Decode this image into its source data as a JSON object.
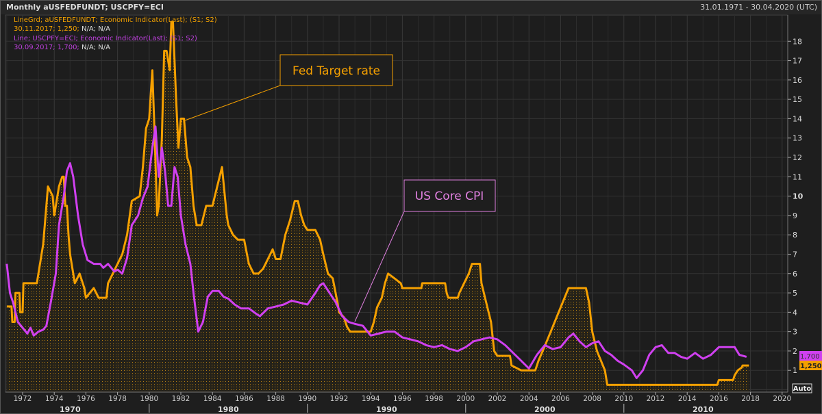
{
  "header": {
    "title": "Monthly aUSFEDFUNDT; USCPFY=ECI",
    "date_range": "31.01.1971 - 30.04.2020 (UTC)"
  },
  "legend": [
    {
      "line1": "LineGrd; aUSFEDFUNDT; Economic Indicator(Last); (S1; S2)",
      "date": "30.11.2017; 1,250;",
      "rest": " N/A; N/A"
    },
    {
      "line1": "Line; USCPFY=ECI; Economic Indicator(Last); (S1; S2)",
      "date": "30.09.2017; 1,700;",
      "rest": " N/A; N/A"
    }
  ],
  "annotations": {
    "fed": "Fed Target rate",
    "cpi": "US Core CPI"
  },
  "value_tags": {
    "cpi": "1,700",
    "fed": "1,250"
  },
  "auto_label": "Auto",
  "colors": {
    "fed": "#f5a000",
    "cpi": "#d040f0",
    "cpi_label": "#e080e0"
  },
  "chart_data": {
    "type": "line",
    "title": "Monthly aUSFEDFUNDT; USCPFY=ECI",
    "xlim": [
      1971,
      2020.3
    ],
    "ylim": [
      0,
      18.5
    ],
    "x_ticks": [
      1972,
      1974,
      1976,
      1978,
      1980,
      1982,
      1984,
      1986,
      1988,
      1990,
      1992,
      1994,
      1996,
      1998,
      2000,
      2002,
      2004,
      2006,
      2008,
      2010,
      2012,
      2014,
      2016,
      2018,
      2020
    ],
    "decades": [
      1970,
      1980,
      1990,
      2000,
      2010
    ],
    "y_ticks": [
      1,
      2,
      3,
      4,
      5,
      6,
      7,
      8,
      9,
      10,
      11,
      12,
      13,
      14,
      15,
      16,
      17,
      18
    ],
    "grid": true,
    "series": [
      {
        "name": "aUSFEDFUNDT",
        "style": "line-fill",
        "points": [
          [
            1971.0,
            4.3
          ],
          [
            1971.3,
            4.3
          ],
          [
            1971.35,
            3.5
          ],
          [
            1971.5,
            3.5
          ],
          [
            1971.55,
            5.0
          ],
          [
            1971.8,
            5.0
          ],
          [
            1971.85,
            4.0
          ],
          [
            1972.0,
            4.0
          ],
          [
            1972.05,
            5.5
          ],
          [
            1972.9,
            5.5
          ],
          [
            1973.0,
            6.0
          ],
          [
            1973.3,
            7.5
          ],
          [
            1973.5,
            9.5
          ],
          [
            1973.6,
            10.5
          ],
          [
            1973.9,
            10.0
          ],
          [
            1974.0,
            9.0
          ],
          [
            1974.3,
            10.5
          ],
          [
            1974.5,
            11.0
          ],
          [
            1974.6,
            11.0
          ],
          [
            1974.7,
            9.5
          ],
          [
            1974.8,
            9.5
          ],
          [
            1974.9,
            8.0
          ],
          [
            1975.0,
            7.0
          ],
          [
            1975.3,
            5.5
          ],
          [
            1975.6,
            6.0
          ],
          [
            1975.9,
            5.25
          ],
          [
            1976.0,
            4.75
          ],
          [
            1976.5,
            5.25
          ],
          [
            1976.8,
            4.75
          ],
          [
            1977.3,
            4.75
          ],
          [
            1977.4,
            5.5
          ],
          [
            1977.7,
            6.0
          ],
          [
            1978.0,
            6.5
          ],
          [
            1978.3,
            7.0
          ],
          [
            1978.6,
            8.0
          ],
          [
            1978.9,
            9.75
          ],
          [
            1979.4,
            10.0
          ],
          [
            1979.6,
            11.5
          ],
          [
            1979.8,
            13.5
          ],
          [
            1980.0,
            14.0
          ],
          [
            1980.2,
            16.5
          ],
          [
            1980.35,
            13.0
          ],
          [
            1980.5,
            9.0
          ],
          [
            1980.6,
            9.5
          ],
          [
            1980.8,
            13.0
          ],
          [
            1980.95,
            17.5
          ],
          [
            1981.1,
            17.5
          ],
          [
            1981.3,
            16.5
          ],
          [
            1981.4,
            19.0
          ],
          [
            1981.5,
            19.0
          ],
          [
            1981.7,
            15.0
          ],
          [
            1981.85,
            12.5
          ],
          [
            1981.9,
            13.0
          ],
          [
            1982.0,
            14.0
          ],
          [
            1982.2,
            14.0
          ],
          [
            1982.4,
            12.0
          ],
          [
            1982.6,
            11.5
          ],
          [
            1982.8,
            9.5
          ],
          [
            1983.0,
            8.5
          ],
          [
            1983.3,
            8.5
          ],
          [
            1983.6,
            9.5
          ],
          [
            1984.0,
            9.5
          ],
          [
            1984.3,
            10.5
          ],
          [
            1984.6,
            11.5
          ],
          [
            1984.9,
            9.0
          ],
          [
            1985.0,
            8.5
          ],
          [
            1985.3,
            8.0
          ],
          [
            1985.6,
            7.75
          ],
          [
            1986.0,
            7.75
          ],
          [
            1986.3,
            6.5
          ],
          [
            1986.6,
            6.0
          ],
          [
            1986.9,
            6.0
          ],
          [
            1987.2,
            6.25
          ],
          [
            1987.5,
            6.75
          ],
          [
            1987.8,
            7.25
          ],
          [
            1988.0,
            6.75
          ],
          [
            1988.3,
            6.75
          ],
          [
            1988.6,
            8.0
          ],
          [
            1988.9,
            8.75
          ],
          [
            1989.2,
            9.75
          ],
          [
            1989.4,
            9.75
          ],
          [
            1989.6,
            9.0
          ],
          [
            1989.8,
            8.5
          ],
          [
            1990.0,
            8.25
          ],
          [
            1990.5,
            8.25
          ],
          [
            1990.8,
            7.75
          ],
          [
            1991.0,
            7.0
          ],
          [
            1991.3,
            6.0
          ],
          [
            1991.6,
            5.75
          ],
          [
            1991.9,
            4.5
          ],
          [
            1992.0,
            4.0
          ],
          [
            1992.3,
            3.75
          ],
          [
            1992.5,
            3.25
          ],
          [
            1992.7,
            3.0
          ],
          [
            1994.0,
            3.0
          ],
          [
            1994.2,
            3.5
          ],
          [
            1994.4,
            4.25
          ],
          [
            1994.7,
            4.75
          ],
          [
            1994.9,
            5.5
          ],
          [
            1995.1,
            6.0
          ],
          [
            1995.5,
            5.75
          ],
          [
            1995.9,
            5.5
          ],
          [
            1996.0,
            5.25
          ],
          [
            1997.2,
            5.25
          ],
          [
            1997.25,
            5.5
          ],
          [
            1998.7,
            5.5
          ],
          [
            1998.8,
            5.0
          ],
          [
            1998.9,
            4.75
          ],
          [
            1999.5,
            4.75
          ],
          [
            1999.6,
            5.0
          ],
          [
            1999.9,
            5.5
          ],
          [
            2000.2,
            6.0
          ],
          [
            2000.4,
            6.5
          ],
          [
            2000.9,
            6.5
          ],
          [
            2001.0,
            5.5
          ],
          [
            2001.3,
            4.5
          ],
          [
            2001.6,
            3.5
          ],
          [
            2001.8,
            2.0
          ],
          [
            2002.0,
            1.75
          ],
          [
            2002.8,
            1.75
          ],
          [
            2002.9,
            1.25
          ],
          [
            2003.5,
            1.0
          ],
          [
            2004.4,
            1.0
          ],
          [
            2004.6,
            1.5
          ],
          [
            2005.0,
            2.25
          ],
          [
            2005.5,
            3.25
          ],
          [
            2006.0,
            4.25
          ],
          [
            2006.5,
            5.25
          ],
          [
            2007.6,
            5.25
          ],
          [
            2007.8,
            4.5
          ],
          [
            2008.0,
            3.0
          ],
          [
            2008.3,
            2.0
          ],
          [
            2008.8,
            1.0
          ],
          [
            2008.95,
            0.25
          ],
          [
            2015.9,
            0.25
          ],
          [
            2016.0,
            0.5
          ],
          [
            2016.9,
            0.5
          ],
          [
            2017.0,
            0.75
          ],
          [
            2017.2,
            1.0
          ],
          [
            2017.45,
            1.15
          ],
          [
            2017.5,
            1.25
          ],
          [
            2017.9,
            1.25
          ]
        ]
      },
      {
        "name": "USCPFY=ECI",
        "style": "line",
        "points": [
          [
            1971.0,
            6.5
          ],
          [
            1971.2,
            5.0
          ],
          [
            1971.4,
            4.5
          ],
          [
            1971.7,
            3.5
          ],
          [
            1972.0,
            3.2
          ],
          [
            1972.3,
            2.9
          ],
          [
            1972.5,
            3.2
          ],
          [
            1972.7,
            2.8
          ],
          [
            1973.0,
            3.0
          ],
          [
            1973.3,
            3.1
          ],
          [
            1973.5,
            3.3
          ],
          [
            1973.8,
            4.6
          ],
          [
            1974.1,
            6.0
          ],
          [
            1974.3,
            8.5
          ],
          [
            1974.6,
            10.0
          ],
          [
            1974.8,
            11.3
          ],
          [
            1975.0,
            11.7
          ],
          [
            1975.2,
            11.0
          ],
          [
            1975.5,
            9.0
          ],
          [
            1975.8,
            7.5
          ],
          [
            1976.1,
            6.7
          ],
          [
            1976.5,
            6.5
          ],
          [
            1976.9,
            6.5
          ],
          [
            1977.1,
            6.3
          ],
          [
            1977.4,
            6.5
          ],
          [
            1977.8,
            6.1
          ],
          [
            1978.0,
            6.2
          ],
          [
            1978.3,
            6.0
          ],
          [
            1978.6,
            6.8
          ],
          [
            1978.9,
            8.5
          ],
          [
            1979.3,
            9.0
          ],
          [
            1979.6,
            9.9
          ],
          [
            1979.9,
            10.5
          ],
          [
            1980.2,
            12.5
          ],
          [
            1980.4,
            13.6
          ],
          [
            1980.6,
            11.0
          ],
          [
            1980.8,
            12.5
          ],
          [
            1981.0,
            11.3
          ],
          [
            1981.2,
            9.5
          ],
          [
            1981.4,
            9.5
          ],
          [
            1981.6,
            11.5
          ],
          [
            1981.8,
            11.0
          ],
          [
            1982.0,
            9.0
          ],
          [
            1982.3,
            7.5
          ],
          [
            1982.6,
            6.5
          ],
          [
            1982.8,
            5.0
          ],
          [
            1983.1,
            3.0
          ],
          [
            1983.4,
            3.5
          ],
          [
            1983.7,
            4.8
          ],
          [
            1984.0,
            5.1
          ],
          [
            1984.4,
            5.1
          ],
          [
            1984.7,
            4.8
          ],
          [
            1985.0,
            4.7
          ],
          [
            1985.4,
            4.4
          ],
          [
            1985.8,
            4.2
          ],
          [
            1986.3,
            4.2
          ],
          [
            1986.8,
            3.9
          ],
          [
            1987.0,
            3.8
          ],
          [
            1987.5,
            4.2
          ],
          [
            1988.0,
            4.3
          ],
          [
            1988.5,
            4.4
          ],
          [
            1989.0,
            4.6
          ],
          [
            1989.5,
            4.5
          ],
          [
            1990.0,
            4.4
          ],
          [
            1990.5,
            5.0
          ],
          [
            1990.8,
            5.4
          ],
          [
            1991.0,
            5.5
          ],
          [
            1991.4,
            5.0
          ],
          [
            1991.8,
            4.5
          ],
          [
            1992.2,
            3.8
          ],
          [
            1992.6,
            3.5
          ],
          [
            1993.0,
            3.4
          ],
          [
            1993.5,
            3.3
          ],
          [
            1994.0,
            2.8
          ],
          [
            1994.5,
            2.9
          ],
          [
            1995.0,
            3.0
          ],
          [
            1995.5,
            3.0
          ],
          [
            1996.0,
            2.7
          ],
          [
            1996.5,
            2.6
          ],
          [
            1997.0,
            2.5
          ],
          [
            1997.5,
            2.3
          ],
          [
            1998.0,
            2.2
          ],
          [
            1998.5,
            2.3
          ],
          [
            1999.0,
            2.1
          ],
          [
            1999.5,
            2.0
          ],
          [
            2000.0,
            2.2
          ],
          [
            2000.5,
            2.5
          ],
          [
            2001.0,
            2.6
          ],
          [
            2001.5,
            2.7
          ],
          [
            2002.0,
            2.6
          ],
          [
            2002.5,
            2.3
          ],
          [
            2003.0,
            1.9
          ],
          [
            2003.5,
            1.5
          ],
          [
            2004.0,
            1.1
          ],
          [
            2004.5,
            1.8
          ],
          [
            2005.0,
            2.3
          ],
          [
            2005.5,
            2.1
          ],
          [
            2006.0,
            2.2
          ],
          [
            2006.5,
            2.7
          ],
          [
            2006.8,
            2.9
          ],
          [
            2007.2,
            2.5
          ],
          [
            2007.6,
            2.2
          ],
          [
            2008.0,
            2.4
          ],
          [
            2008.4,
            2.5
          ],
          [
            2008.8,
            2.0
          ],
          [
            2009.2,
            1.8
          ],
          [
            2009.6,
            1.5
          ],
          [
            2010.0,
            1.3
          ],
          [
            2010.5,
            1.0
          ],
          [
            2010.8,
            0.6
          ],
          [
            2011.2,
            1.0
          ],
          [
            2011.6,
            1.8
          ],
          [
            2012.0,
            2.2
          ],
          [
            2012.4,
            2.3
          ],
          [
            2012.8,
            1.9
          ],
          [
            2013.2,
            1.9
          ],
          [
            2013.6,
            1.7
          ],
          [
            2014.0,
            1.6
          ],
          [
            2014.5,
            1.9
          ],
          [
            2015.0,
            1.6
          ],
          [
            2015.5,
            1.8
          ],
          [
            2016.0,
            2.2
          ],
          [
            2016.5,
            2.2
          ],
          [
            2017.0,
            2.2
          ],
          [
            2017.3,
            1.8
          ],
          [
            2017.75,
            1.7
          ]
        ]
      }
    ]
  }
}
